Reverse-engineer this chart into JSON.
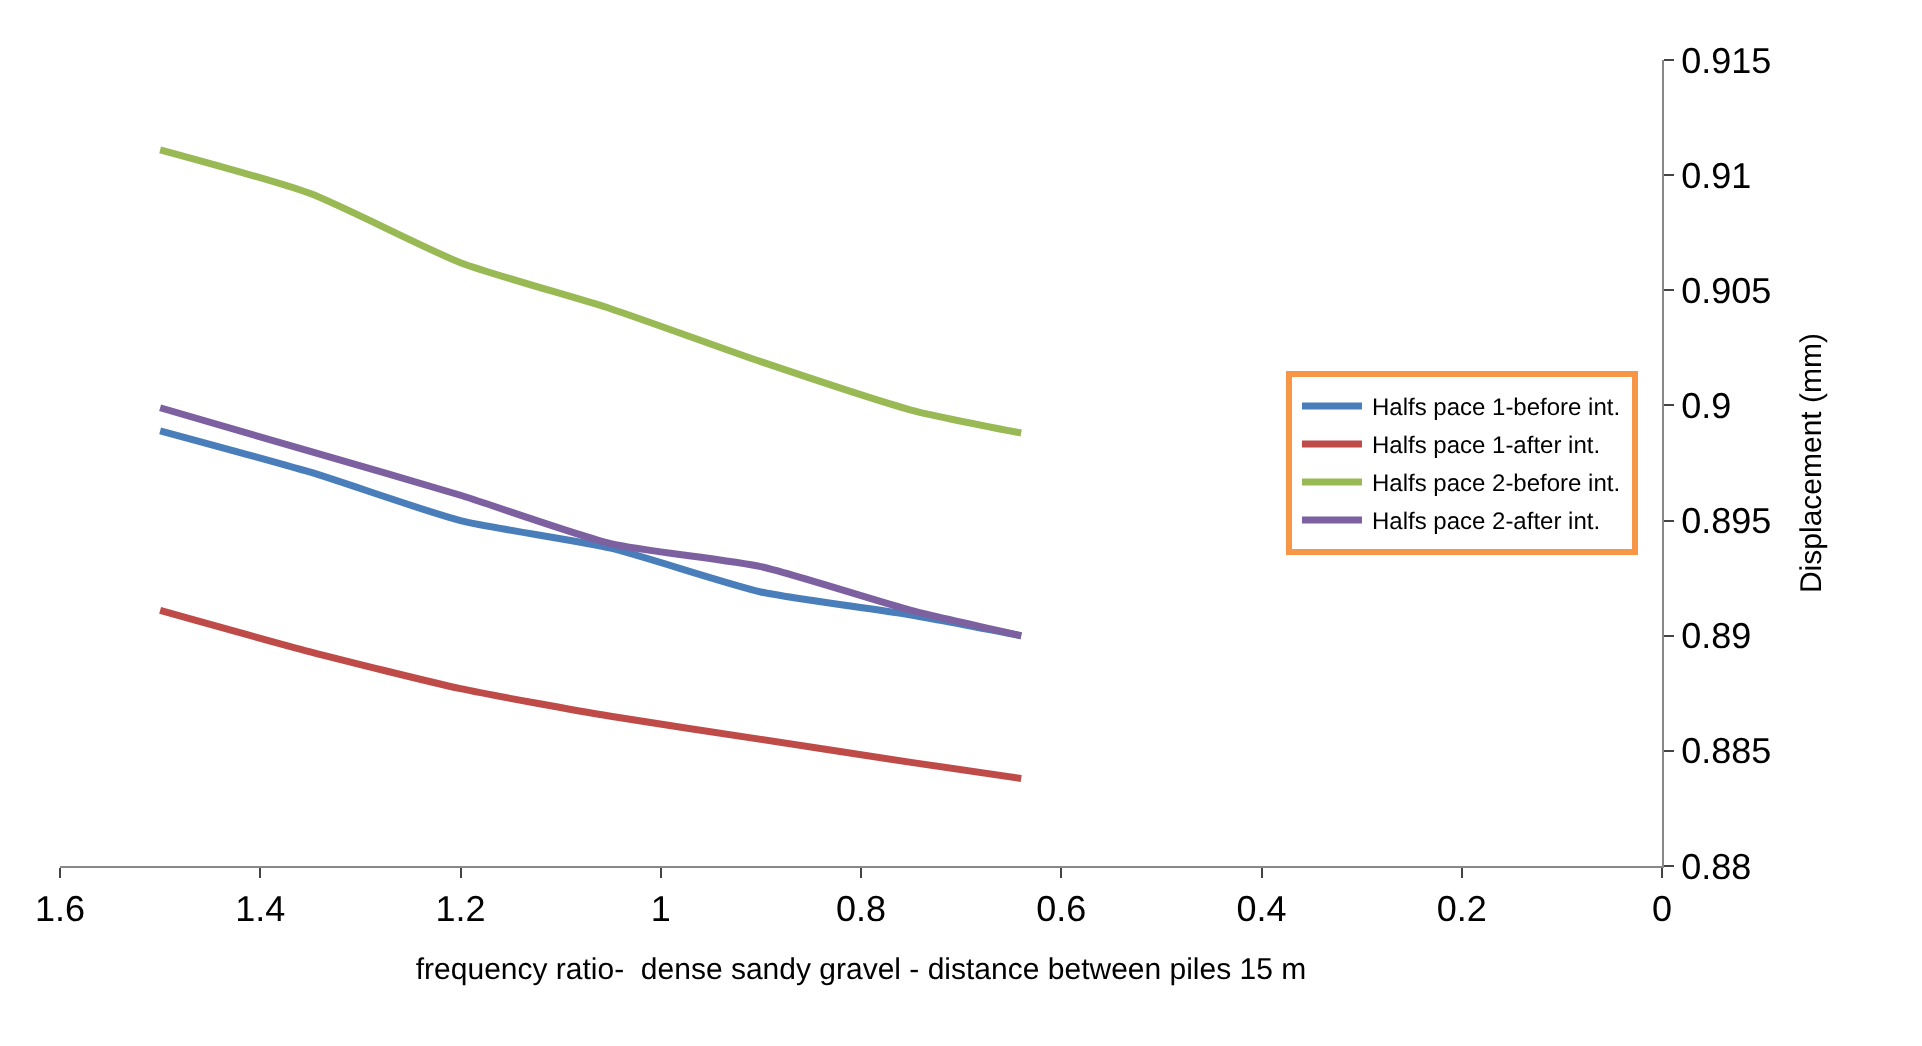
{
  "chart_data": {
    "type": "line",
    "xlabel": "frequency ratio-  dense sandy gravel - distance between piles 15 m",
    "ylabel": "Displacement (mm)",
    "x": [
      1.5,
      1.35,
      1.2,
      1.05,
      0.9,
      0.75,
      0.64
    ],
    "series": [
      {
        "name": "Halfs pace 1-before int.",
        "color": "#4a7ebb",
        "values": [
          0.8989,
          0.8971,
          0.895,
          0.8938,
          0.8919,
          0.8909,
          0.89
        ]
      },
      {
        "name": "Halfs pace 1-after int.",
        "color": "#be4b48",
        "values": [
          0.8911,
          0.8893,
          0.8877,
          0.8865,
          0.8855,
          0.8845,
          0.8838
        ]
      },
      {
        "name": "Halfs pace 2-before int.",
        "color": "#98b954",
        "values": [
          0.9111,
          0.9092,
          0.9062,
          0.9042,
          0.9019,
          0.8998,
          0.8988
        ]
      },
      {
        "name": "Halfs pace 2-after int.",
        "color": "#7d60a0",
        "values": [
          0.8999,
          0.898,
          0.8961,
          0.894,
          0.893,
          0.8911,
          0.89
        ]
      }
    ],
    "xlim": [
      1.6,
      0
    ],
    "xticks": [
      1.6,
      1.4,
      1.2,
      1,
      0.8,
      0.6,
      0.4,
      0.2,
      0
    ],
    "ylim": [
      0.88,
      0.915
    ],
    "yticks": [
      0.88,
      0.885,
      0.89,
      0.895,
      0.9,
      0.905,
      0.91,
      0.915
    ],
    "legend": "right",
    "marker": "none",
    "line_style": "solid"
  }
}
